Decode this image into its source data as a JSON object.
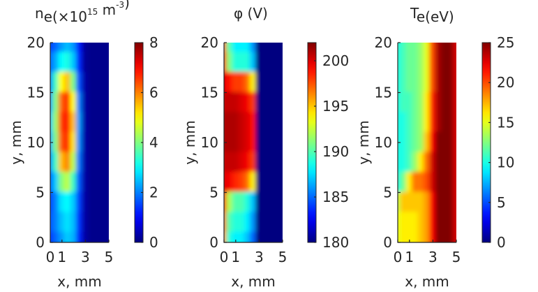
{
  "chart_data": [
    {
      "type": "heatmap",
      "title": {
        "main": "n",
        "sub": "e",
        "open": "(×10",
        "exp": "15",
        "unit": " m",
        "unitexp": "-3",
        "close": ")"
      },
      "xlabel": "x, mm",
      "ylabel": "y, mm",
      "xlim": [
        0,
        5
      ],
      "ylim": [
        0,
        20
      ],
      "xticks": [
        0,
        1,
        3,
        5
      ],
      "yticks": [
        0,
        5,
        10,
        15,
        20
      ],
      "colorbar": {
        "range": [
          0,
          8
        ],
        "ticks": [
          0,
          2,
          4,
          6,
          8
        ]
      },
      "colormap": "jet",
      "field": {
        "columns_x": [
          0,
          0.5,
          1,
          1.5,
          2,
          2.5,
          3,
          3.5,
          4,
          4.5,
          5
        ],
        "rows_y": [
          20,
          18,
          16,
          14,
          12,
          10,
          8,
          6,
          4,
          2,
          0
        ],
        "values": [
          [
            1.5,
            1.8,
            2.2,
            2.5,
            2.2,
            1.2,
            0.2,
            0.1,
            0.1,
            0.1,
            0.1
          ],
          [
            1.8,
            2.3,
            3.0,
            3.2,
            2.6,
            1.3,
            0.2,
            0.1,
            0.1,
            0.1,
            0.1
          ],
          [
            2.0,
            3.5,
            5.0,
            5.5,
            4.0,
            1.6,
            0.3,
            0.1,
            0.1,
            0.1,
            0.1
          ],
          [
            2.2,
            4.0,
            6.2,
            6.8,
            5.0,
            2.0,
            0.3,
            0.1,
            0.1,
            0.1,
            0.1
          ],
          [
            2.5,
            4.2,
            6.5,
            7.0,
            5.5,
            2.2,
            0.3,
            0.1,
            0.1,
            0.1,
            0.1
          ],
          [
            2.3,
            4.0,
            6.3,
            6.8,
            5.2,
            2.1,
            0.3,
            0.1,
            0.1,
            0.1,
            0.1
          ],
          [
            2.0,
            3.5,
            5.5,
            6.0,
            4.5,
            1.9,
            0.3,
            0.1,
            0.1,
            0.1,
            0.1
          ],
          [
            1.6,
            2.6,
            4.0,
            4.5,
            3.5,
            1.7,
            0.3,
            0.1,
            0.1,
            0.1,
            0.1
          ],
          [
            1.5,
            2.0,
            2.8,
            3.0,
            2.6,
            1.5,
            0.3,
            0.1,
            0.1,
            0.1,
            0.1
          ],
          [
            1.6,
            2.0,
            2.5,
            2.8,
            2.5,
            1.4,
            0.3,
            0.1,
            0.1,
            0.1,
            0.1
          ],
          [
            1.4,
            1.8,
            2.2,
            2.6,
            2.4,
            1.3,
            0.3,
            0.1,
            0.1,
            0.1,
            0.1
          ]
        ]
      }
    },
    {
      "type": "heatmap",
      "title": {
        "main": "φ (V)"
      },
      "xlabel": "x, mm",
      "ylabel": "y, mm",
      "xlim": [
        0,
        5
      ],
      "ylim": [
        0,
        20
      ],
      "xticks": [
        0,
        1,
        3,
        5
      ],
      "yticks": [
        0,
        5,
        10,
        15,
        20
      ],
      "colorbar": {
        "range": [
          180,
          202
        ],
        "ticks": [
          180,
          185,
          190,
          195,
          200
        ]
      },
      "colormap": "jet",
      "field": {
        "columns_x": [
          0,
          0.5,
          1,
          1.5,
          2,
          2.5,
          3,
          3.5,
          4,
          4.5,
          5
        ],
        "rows_y": [
          20,
          18,
          16,
          14,
          12,
          10,
          8,
          6,
          4,
          2,
          0
        ],
        "values": [
          [
            197,
            190,
            188,
            188,
            188,
            186,
            180,
            180,
            180,
            180,
            180
          ],
          [
            199,
            191,
            189,
            189,
            189,
            187,
            180,
            180,
            180,
            180,
            180
          ],
          [
            200,
            199,
            198,
            198,
            197,
            194,
            180,
            180,
            180,
            180,
            180
          ],
          [
            200.5,
            200.5,
            200.5,
            200,
            199.5,
            198,
            180,
            180,
            180,
            180,
            180
          ],
          [
            201,
            201,
            201,
            200.5,
            200,
            199,
            180,
            180,
            180,
            180,
            180
          ],
          [
            201,
            201,
            201,
            200.5,
            200,
            199,
            180,
            180,
            180,
            180,
            180
          ],
          [
            200.5,
            200.5,
            200.5,
            200,
            199.5,
            198,
            180,
            180,
            180,
            180,
            180
          ],
          [
            200,
            199.5,
            198.5,
            198,
            197,
            194,
            180,
            180,
            180,
            180,
            180
          ],
          [
            199,
            192,
            190,
            190,
            189,
            187,
            180,
            180,
            180,
            180,
            180
          ],
          [
            197,
            190,
            189,
            189,
            188,
            186,
            180,
            180,
            180,
            180,
            180
          ],
          [
            196,
            189,
            188,
            188,
            187,
            185,
            180,
            180,
            180,
            180,
            180
          ]
        ]
      }
    },
    {
      "type": "heatmap",
      "title": {
        "main": "T",
        "sub": "e",
        "open": "(eV)"
      },
      "xlabel": "x, mm",
      "ylabel": "y, mm",
      "xlim": [
        0,
        5
      ],
      "ylim": [
        0,
        20
      ],
      "xticks": [
        0,
        1,
        3,
        5
      ],
      "yticks": [
        0,
        5,
        10,
        15,
        20
      ],
      "colorbar": {
        "range": [
          0,
          25
        ],
        "ticks": [
          0,
          5,
          10,
          15,
          20,
          25
        ]
      },
      "colormap": "jet",
      "field": {
        "columns_x": [
          0,
          0.5,
          1,
          1.5,
          2,
          2.5,
          3,
          3.5,
          4,
          4.5,
          5
        ],
        "rows_y": [
          20,
          18,
          16,
          14,
          12,
          10,
          8,
          6,
          4,
          2,
          0
        ],
        "values": [
          [
            10,
            11,
            12,
            12,
            13,
            15,
            20,
            24,
            25,
            25,
            23
          ],
          [
            10,
            11,
            12,
            12,
            13,
            15,
            20,
            24,
            25,
            25,
            23
          ],
          [
            10,
            11,
            12,
            12,
            13,
            15,
            20,
            24,
            25,
            25,
            23
          ],
          [
            10,
            11,
            11,
            12,
            13,
            16,
            21,
            24,
            25,
            25,
            23
          ],
          [
            10,
            10,
            11,
            12,
            13,
            16,
            21,
            24,
            25,
            25,
            23
          ],
          [
            10,
            10,
            11,
            12,
            13,
            17,
            22,
            25,
            25,
            25,
            23
          ],
          [
            10,
            10,
            11,
            13,
            16,
            19,
            23,
            25,
            25,
            25,
            23
          ],
          [
            10,
            12,
            16,
            19,
            19,
            20,
            23,
            25,
            25,
            25,
            23
          ],
          [
            14,
            17,
            17,
            17,
            17,
            18,
            22,
            25,
            25,
            25,
            23
          ],
          [
            15,
            16,
            16,
            16,
            17,
            18,
            22,
            25,
            25,
            25,
            23
          ],
          [
            15,
            16,
            16,
            16,
            17,
            18,
            22,
            25,
            25,
            25,
            23
          ]
        ]
      }
    }
  ]
}
